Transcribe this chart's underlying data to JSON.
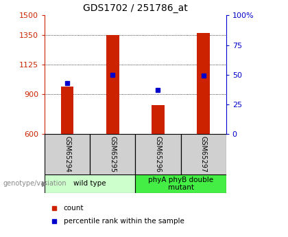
{
  "title": "GDS1702 / 251786_at",
  "samples": [
    "GSM65294",
    "GSM65295",
    "GSM65296",
    "GSM65297"
  ],
  "counts": [
    960,
    1350,
    820,
    1365
  ],
  "percentiles": [
    43,
    50,
    37,
    49
  ],
  "ylim_left": [
    600,
    1500
  ],
  "ylim_right": [
    0,
    100
  ],
  "yticks_left": [
    600,
    900,
    1125,
    1350,
    1500
  ],
  "yticks_right": [
    0,
    25,
    50,
    75,
    100
  ],
  "bar_color": "#cc2200",
  "dot_color": "#0000cc",
  "bar_width": 0.28,
  "groups": [
    {
      "label": "wild type",
      "samples": [
        0,
        1
      ],
      "color": "#ccffcc"
    },
    {
      "label": "phyA phyB double\nmutant",
      "samples": [
        2,
        3
      ],
      "color": "#44ee44"
    }
  ],
  "legend_items": [
    {
      "label": "count",
      "color": "#cc2200"
    },
    {
      "label": "percentile rank within the sample",
      "color": "#0000cc"
    }
  ],
  "left_axis_color": "#cc2200",
  "right_axis_color": "#0000cc",
  "annotation_text": "genotype/variation",
  "title_fontsize": 10,
  "tick_fontsize": 8,
  "label_fontsize": 7.5
}
